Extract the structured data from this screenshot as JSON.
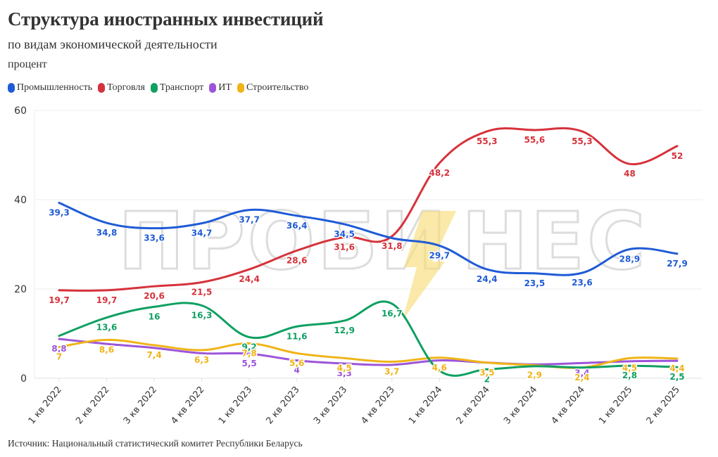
{
  "header": {
    "title": "Структура иностранных инвестиций",
    "subtitle": "по видам экономической деятельности",
    "unit": "процент"
  },
  "legend": [
    {
      "label": "Промышленность",
      "color": "#1f5bd6"
    },
    {
      "label": "Торговля",
      "color": "#d6323b"
    },
    {
      "label": "Транспорт",
      "color": "#0fa062"
    },
    {
      "label": "ИТ",
      "color": "#9c55d8"
    },
    {
      "label": "Строительство",
      "color": "#f0b418"
    }
  ],
  "watermark": {
    "text_left": "ПРОБИ",
    "text_right": "НЕС",
    "icon": "lightning-bolt-icon"
  },
  "source": "Источник: Национальный статистический комитет Республики Беларусь",
  "chart_data": {
    "type": "line",
    "title": "Структура иностранных инвестиций",
    "subtitle": "по видам экономической деятельности",
    "xlabel": "",
    "ylabel": "процент",
    "ylim": [
      0,
      60
    ],
    "yticks": [
      0,
      20,
      40,
      60
    ],
    "grid": true,
    "legend_position": "top-left",
    "categories": [
      "1 кв 2022",
      "2 кв 2022",
      "3 кв 2022",
      "4 кв 2022",
      "1 кв 2023",
      "2 кв 2023",
      "3 кв 2023",
      "4 кв 2023",
      "1 кв 2024",
      "2 кв 2024",
      "3 кв 2024",
      "4 кв 2024",
      "1 кв 2025",
      "2 кв 2025"
    ],
    "series": [
      {
        "name": "Промышленность",
        "color": "#1f5bd6",
        "values": [
          39.3,
          34.8,
          33.6,
          34.7,
          37.7,
          36.4,
          34.5,
          31.4,
          29.7,
          24.4,
          23.5,
          23.6,
          28.9,
          27.9
        ],
        "labels": [
          "39,3",
          "34,8",
          "33,6",
          "34,7",
          "37,7",
          "36,4",
          "34,5",
          "",
          "29,7",
          "24,4",
          "23,5",
          "23,6",
          "28,9",
          "27,9"
        ]
      },
      {
        "name": "Торговля",
        "color": "#d6323b",
        "values": [
          19.7,
          19.7,
          20.6,
          21.5,
          24.4,
          28.6,
          31.6,
          31.8,
          48.2,
          55.3,
          55.6,
          55.3,
          48,
          52
        ],
        "labels": [
          "19,7",
          "19,7",
          "20,6",
          "21,5",
          "24,4",
          "28,6",
          "31,6",
          "31,8",
          "48,2",
          "55,3",
          "55,6",
          "55,3",
          "48",
          "52"
        ]
      },
      {
        "name": "Транспорт",
        "color": "#0fa062",
        "values": [
          9.5,
          13.6,
          16,
          16.3,
          9.2,
          11.6,
          12.9,
          16.7,
          1.7,
          2,
          2.7,
          2.4,
          2.8,
          2.5
        ],
        "labels": [
          "",
          "13,6",
          "16",
          "16,3",
          "9,2",
          "11,6",
          "12,9",
          "16,7",
          "",
          "2",
          "2,7",
          "",
          "2,8",
          "2,5"
        ]
      },
      {
        "name": "ИТ",
        "color": "#9c55d8",
        "values": [
          8.8,
          7.7,
          6.8,
          5.6,
          5.5,
          4,
          3.3,
          3,
          4,
          3.5,
          3.1,
          3.4,
          3.8,
          3.9
        ],
        "labels": [
          "8,8",
          "",
          "",
          "",
          "5,5",
          "4",
          "3,3",
          "",
          "",
          "",
          "",
          "3,4",
          "",
          ""
        ]
      },
      {
        "name": "Строительство",
        "color": "#f0b418",
        "values": [
          7,
          8.6,
          7.4,
          6.3,
          7.8,
          5.6,
          4.5,
          3.7,
          4.6,
          3.5,
          2.9,
          2.4,
          4.5,
          4.4
        ],
        "labels": [
          "7",
          "8,6",
          "7,4",
          "6,3",
          "7,8",
          "5,6",
          "4,5",
          "3,7",
          "4,6",
          "3,5",
          "2,9",
          "2,4",
          "4,5",
          "4,4"
        ]
      }
    ]
  }
}
